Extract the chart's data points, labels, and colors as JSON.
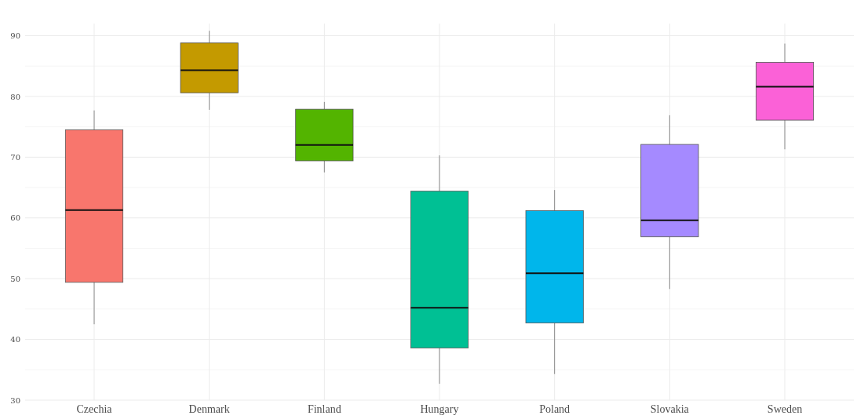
{
  "chart_data": {
    "type": "box",
    "categories": [
      "Czechia",
      "Denmark",
      "Finland",
      "Hungary",
      "Poland",
      "Slovakia",
      "Sweden"
    ],
    "colors": [
      "#f8766d",
      "#c49a00",
      "#53b400",
      "#00c094",
      "#00b6eb",
      "#a58aff",
      "#fb61d7"
    ],
    "boxes": [
      {
        "low": 42.5,
        "q1": 49.4,
        "median": 61.3,
        "q3": 74.5,
        "high": 77.7
      },
      {
        "low": 77.8,
        "q1": 80.6,
        "median": 84.3,
        "q3": 88.8,
        "high": 90.8
      },
      {
        "low": 67.5,
        "q1": 69.4,
        "median": 72.0,
        "q3": 77.9,
        "high": 79.1
      },
      {
        "low": 32.7,
        "q1": 38.6,
        "median": 45.2,
        "q3": 64.4,
        "high": 70.3
      },
      {
        "low": 34.3,
        "q1": 42.7,
        "median": 50.9,
        "q3": 61.2,
        "high": 64.6
      },
      {
        "low": 48.3,
        "q1": 56.9,
        "median": 59.6,
        "q3": 72.1,
        "high": 76.9
      },
      {
        "low": 71.3,
        "q1": 76.1,
        "median": 81.6,
        "q3": 85.6,
        "high": 88.7
      }
    ],
    "ylim": [
      30,
      92
    ],
    "yticks": [
      30,
      40,
      50,
      60,
      70,
      80,
      90
    ],
    "grid": true
  }
}
